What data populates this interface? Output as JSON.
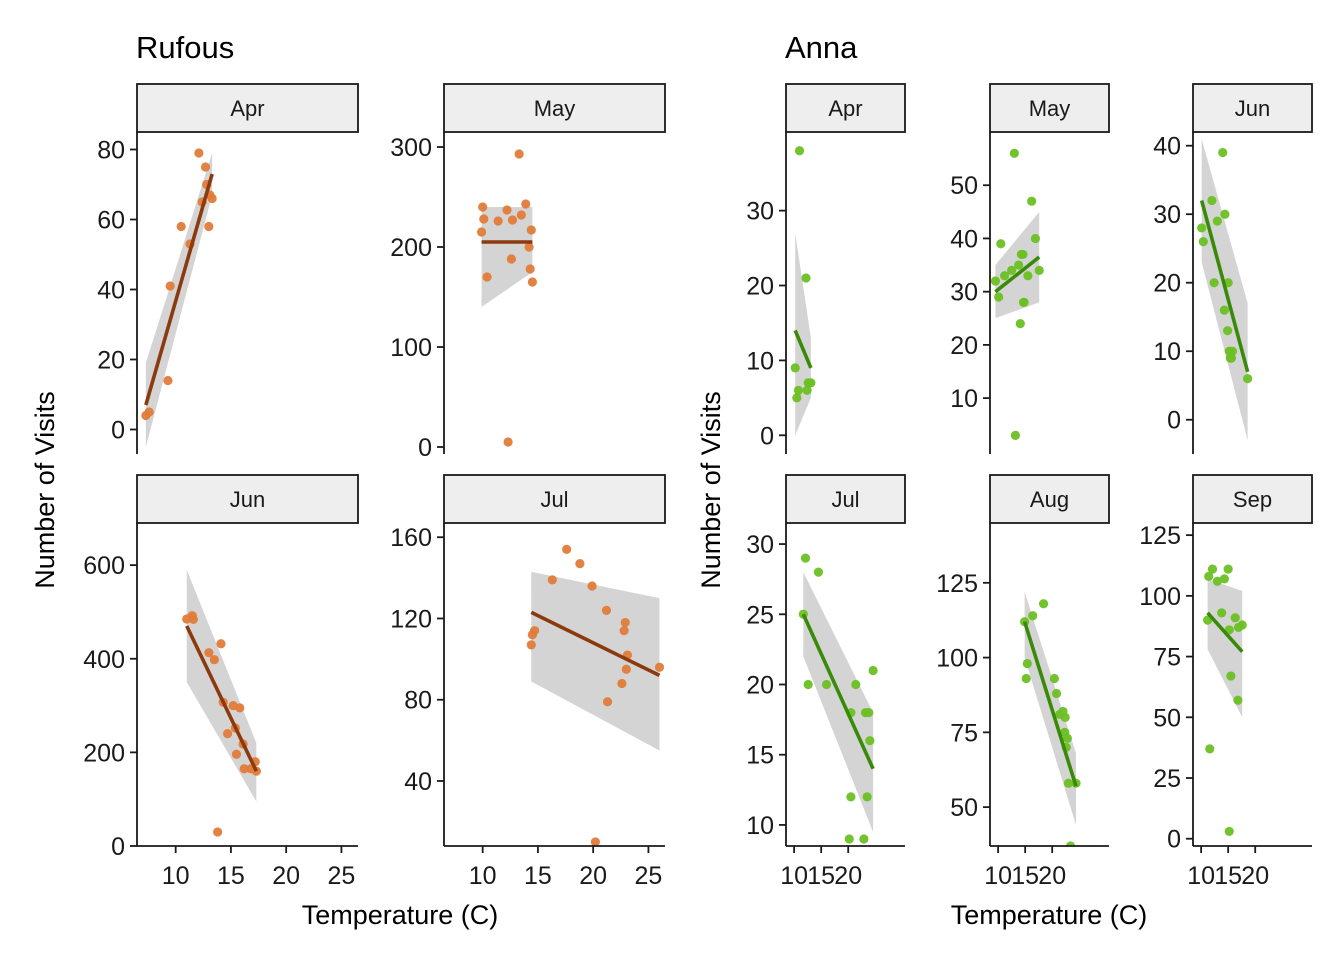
{
  "colors": {
    "rufous_point": "#E07B39",
    "rufous_line": "#8B3A0E",
    "anna_point": "#6CC024",
    "anna_line": "#3A8A0A",
    "ribbon": "#CCCCCC",
    "strip_fill": "#EEEEEE",
    "strip_border": "#1a1a1a",
    "axis": "#1a1a1a"
  },
  "groups": [
    {
      "title": "Rufous",
      "xlabel": "Temperature (C)",
      "ylabel": "Number of Visits"
    },
    {
      "title": "Anna",
      "xlabel": "Temperature (C)",
      "ylabel": "Number of Visits"
    }
  ],
  "chart_data": [
    {
      "type": "scatter",
      "group": "Rufous",
      "panel": "Apr",
      "xlim": [
        6.5,
        26.5
      ],
      "ylim": [
        -7,
        85
      ],
      "yticks": [
        0,
        20,
        40,
        60,
        80
      ],
      "xticks": [
        10,
        15,
        20,
        25
      ],
      "show_x_axis": false,
      "points": [
        [
          7.3,
          4
        ],
        [
          7.6,
          5
        ],
        [
          9.3,
          14
        ],
        [
          9.5,
          41
        ],
        [
          10.5,
          58
        ],
        [
          11.3,
          53
        ],
        [
          12.1,
          79
        ],
        [
          12.4,
          65
        ],
        [
          12.7,
          75
        ],
        [
          12.8,
          70
        ],
        [
          13.0,
          58
        ],
        [
          13.1,
          67
        ],
        [
          13.3,
          66
        ]
      ],
      "fit": {
        "x": [
          7.3,
          13.3
        ],
        "y": [
          7,
          73
        ],
        "upper": [
          19,
          79
        ],
        "lower": [
          -5,
          67
        ]
      }
    },
    {
      "type": "scatter",
      "group": "Rufous",
      "panel": "May",
      "xlim": [
        6.5,
        26.5
      ],
      "ylim": [
        -7,
        315
      ],
      "yticks": [
        0,
        100,
        200,
        300
      ],
      "xticks": [
        10,
        15,
        20,
        25
      ],
      "show_x_axis": false,
      "points": [
        [
          9.9,
          215
        ],
        [
          10.0,
          240
        ],
        [
          10.1,
          228
        ],
        [
          10.4,
          170
        ],
        [
          11.4,
          226
        ],
        [
          12.2,
          237
        ],
        [
          12.3,
          5
        ],
        [
          12.6,
          188
        ],
        [
          12.7,
          227
        ],
        [
          13.3,
          293
        ],
        [
          13.5,
          232
        ],
        [
          13.9,
          243
        ],
        [
          14.2,
          200
        ],
        [
          14.3,
          178
        ],
        [
          14.4,
          217
        ],
        [
          14.5,
          165
        ]
      ],
      "fit": {
        "x": [
          9.9,
          14.5
        ],
        "y": [
          205,
          205
        ],
        "upper": [
          240,
          240
        ],
        "lower": [
          140,
          175
        ]
      }
    },
    {
      "type": "scatter",
      "group": "Rufous",
      "panel": "Jun",
      "xlim": [
        6.5,
        26.5
      ],
      "ylim": [
        0,
        690
      ],
      "yticks": [
        0,
        200,
        400,
        600
      ],
      "xticks": [
        10,
        15,
        20,
        25
      ],
      "show_x_axis": true,
      "points": [
        [
          11.0,
          485
        ],
        [
          11.5,
          492
        ],
        [
          11.6,
          484
        ],
        [
          13.0,
          413
        ],
        [
          13.5,
          398
        ],
        [
          13.8,
          30
        ],
        [
          14.1,
          432
        ],
        [
          14.3,
          307
        ],
        [
          14.7,
          240
        ],
        [
          15.2,
          300
        ],
        [
          15.4,
          252
        ],
        [
          15.5,
          196
        ],
        [
          15.8,
          295
        ],
        [
          16.1,
          218
        ],
        [
          16.2,
          165
        ],
        [
          16.8,
          165
        ],
        [
          17.2,
          180
        ],
        [
          17.3,
          160
        ]
      ],
      "fit": {
        "x": [
          11.0,
          17.3
        ],
        "y": [
          470,
          160
        ],
        "upper": [
          590,
          220
        ],
        "lower": [
          350,
          95
        ]
      }
    },
    {
      "type": "scatter",
      "group": "Rufous",
      "panel": "Jul",
      "xlim": [
        6.5,
        26.5
      ],
      "ylim": [
        8,
        167
      ],
      "yticks": [
        40,
        80,
        120,
        160
      ],
      "xticks": [
        10,
        15,
        20,
        25
      ],
      "show_x_axis": true,
      "points": [
        [
          14.4,
          107
        ],
        [
          14.5,
          112
        ],
        [
          14.7,
          114
        ],
        [
          16.3,
          139
        ],
        [
          17.6,
          154
        ],
        [
          18.8,
          147
        ],
        [
          19.9,
          136
        ],
        [
          20.2,
          10
        ],
        [
          21.2,
          124
        ],
        [
          21.3,
          79
        ],
        [
          22.6,
          88
        ],
        [
          22.8,
          114
        ],
        [
          22.9,
          118
        ],
        [
          23.0,
          95
        ],
        [
          23.1,
          102
        ],
        [
          26.0,
          96
        ]
      ],
      "fit": {
        "x": [
          14.4,
          26.0
        ],
        "y": [
          123,
          92
        ],
        "upper": [
          143,
          130
        ],
        "lower": [
          89,
          55
        ]
      }
    },
    {
      "type": "scatter",
      "group": "Anna",
      "panel": "Apr",
      "xlim": [
        8.5,
        30.5
      ],
      "ylim": [
        -2.5,
        40.5
      ],
      "yticks": [
        0,
        10,
        20,
        30
      ],
      "xticks": [
        10,
        15,
        20
      ],
      "show_x_axis": false,
      "points": [
        [
          10.2,
          9
        ],
        [
          10.5,
          5
        ],
        [
          10.8,
          6
        ],
        [
          11.0,
          38
        ],
        [
          12.2,
          21
        ],
        [
          12.4,
          6
        ],
        [
          12.6,
          7
        ],
        [
          12.9,
          7
        ],
        [
          13.1,
          7
        ]
      ],
      "fit": {
        "x": [
          10.2,
          13.1
        ],
        "y": [
          14,
          9
        ],
        "upper": [
          27,
          13
        ],
        "lower": [
          0,
          5
        ]
      }
    },
    {
      "type": "scatter",
      "group": "Anna",
      "panel": "May",
      "xlim": [
        8.5,
        30.5
      ],
      "ylim": [
        -0.5,
        60
      ],
      "yticks": [
        10,
        20,
        30,
        40,
        50
      ],
      "xticks": [
        10,
        15,
        20
      ],
      "show_x_axis": false,
      "points": [
        [
          9.5,
          32
        ],
        [
          10.1,
          29
        ],
        [
          10.5,
          39
        ],
        [
          11.2,
          33
        ],
        [
          12.5,
          34
        ],
        [
          13.0,
          56
        ],
        [
          13.2,
          3
        ],
        [
          13.8,
          35
        ],
        [
          14.1,
          24
        ],
        [
          14.3,
          37
        ],
        [
          14.6,
          37
        ],
        [
          14.7,
          28
        ],
        [
          14.8,
          28
        ],
        [
          15.5,
          33
        ],
        [
          16.2,
          47
        ],
        [
          16.9,
          40
        ],
        [
          17.6,
          34
        ]
      ],
      "fit": {
        "x": [
          9.5,
          17.6
        ],
        "y": [
          30,
          36.5
        ],
        "upper": [
          35,
          45
        ],
        "lower": [
          25,
          28
        ]
      }
    },
    {
      "type": "scatter",
      "group": "Anna",
      "panel": "Jun",
      "xlim": [
        8.5,
        30.5
      ],
      "ylim": [
        -5,
        42
      ],
      "yticks": [
        0,
        10,
        20,
        30,
        40
      ],
      "xticks": [
        10,
        15,
        20
      ],
      "show_x_axis": false,
      "points": [
        [
          10.1,
          28
        ],
        [
          10.4,
          26
        ],
        [
          12.0,
          32
        ],
        [
          12.4,
          20
        ],
        [
          13.0,
          29
        ],
        [
          14.0,
          39
        ],
        [
          14.3,
          16
        ],
        [
          14.4,
          30
        ],
        [
          14.9,
          13
        ],
        [
          15.0,
          20
        ],
        [
          15.2,
          10
        ],
        [
          15.4,
          9
        ],
        [
          15.6,
          9
        ],
        [
          15.8,
          10
        ],
        [
          18.6,
          6
        ]
      ],
      "fit": {
        "x": [
          10.1,
          18.6
        ],
        "y": [
          32,
          7
        ],
        "upper": [
          41,
          17
        ],
        "lower": [
          23,
          -3
        ]
      }
    },
    {
      "type": "scatter",
      "group": "Anna",
      "panel": "Jul",
      "xlim": [
        8.5,
        30.5
      ],
      "ylim": [
        8.5,
        31.5
      ],
      "yticks": [
        10,
        15,
        20,
        25,
        30
      ],
      "xticks": [
        10,
        15,
        20
      ],
      "show_x_axis": true,
      "points": [
        [
          11.7,
          25
        ],
        [
          12.1,
          29
        ],
        [
          12.6,
          20
        ],
        [
          14.5,
          28
        ],
        [
          16.0,
          20
        ],
        [
          20.5,
          18
        ],
        [
          20.2,
          9
        ],
        [
          20.5,
          12
        ],
        [
          21.4,
          20
        ],
        [
          23.2,
          18
        ],
        [
          22.9,
          9
        ],
        [
          23.5,
          12
        ],
        [
          24.0,
          16
        ],
        [
          24.6,
          21
        ],
        [
          23.8,
          18
        ]
      ],
      "fit": {
        "x": [
          11.7,
          24.6
        ],
        "y": [
          25,
          14
        ],
        "upper": [
          28,
          18
        ],
        "lower": [
          22,
          9.5
        ]
      }
    },
    {
      "type": "scatter",
      "group": "Anna",
      "panel": "Aug",
      "xlim": [
        8.5,
        30.5
      ],
      "ylim": [
        37,
        145
      ],
      "yticks": [
        50,
        75,
        100,
        125
      ],
      "xticks": [
        10,
        15,
        20
      ],
      "show_x_axis": true,
      "points": [
        [
          14.9,
          112
        ],
        [
          15.2,
          93
        ],
        [
          15.4,
          98
        ],
        [
          16.4,
          114
        ],
        [
          18.4,
          118
        ],
        [
          20.4,
          93
        ],
        [
          20.8,
          88
        ],
        [
          21.4,
          81
        ],
        [
          22.0,
          82
        ],
        [
          22.3,
          75
        ],
        [
          22.4,
          80
        ],
        [
          22.6,
          70
        ],
        [
          22.8,
          73
        ],
        [
          23.0,
          58
        ],
        [
          23.4,
          37
        ],
        [
          24.4,
          58
        ]
      ],
      "fit": {
        "x": [
          14.9,
          24.4
        ],
        "y": [
          112,
          57
        ],
        "upper": [
          122,
          68
        ],
        "lower": [
          100,
          44
        ]
      }
    },
    {
      "type": "scatter",
      "group": "Anna",
      "panel": "Sep",
      "xlim": [
        8.5,
        30.5
      ],
      "ylim": [
        -3,
        130
      ],
      "yticks": [
        0,
        25,
        50,
        75,
        100,
        125
      ],
      "xticks": [
        10,
        15,
        20
      ],
      "show_x_axis": true,
      "points": [
        [
          11.2,
          90
        ],
        [
          11.4,
          108
        ],
        [
          11.6,
          37
        ],
        [
          12.1,
          111
        ],
        [
          13.0,
          106
        ],
        [
          13.8,
          93
        ],
        [
          14.3,
          107
        ],
        [
          15.0,
          111
        ],
        [
          15.2,
          3
        ],
        [
          15.2,
          86
        ],
        [
          15.5,
          67
        ],
        [
          16.3,
          91
        ],
        [
          16.8,
          57
        ],
        [
          16.9,
          87
        ],
        [
          17.6,
          88
        ]
      ],
      "fit": {
        "x": [
          11.2,
          17.6
        ],
        "y": [
          93,
          77
        ],
        "upper": [
          107,
          102
        ],
        "lower": [
          78,
          50
        ]
      }
    }
  ]
}
